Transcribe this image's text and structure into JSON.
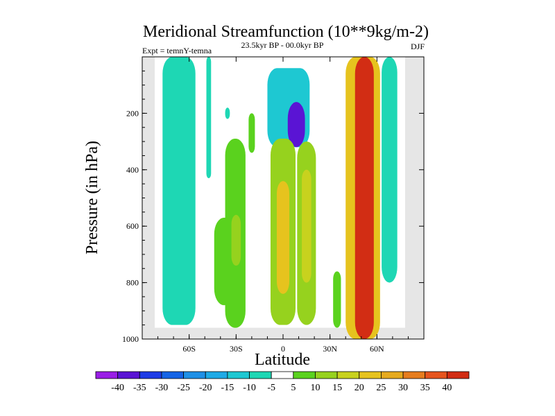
{
  "chart_data": {
    "type": "heatmap",
    "title": "Meridional Streamfunction (10**9kg/m-2)",
    "subtitle_left": "Expt = temnY-temna",
    "subtitle_center": "23.5kyr BP - 00.0kyr BP",
    "subtitle_right": "DJF",
    "xlabel": "Latitude",
    "ylabel": "Pressure (in hPa)",
    "xlim": [
      -90,
      90
    ],
    "ylim": [
      1000,
      0
    ],
    "x_ticks": [
      {
        "value": -60,
        "label": "60S"
      },
      {
        "value": -30,
        "label": "30S"
      },
      {
        "value": 0,
        "label": "0"
      },
      {
        "value": 30,
        "label": "30N"
      },
      {
        "value": 60,
        "label": "60N"
      }
    ],
    "y_ticks": [
      {
        "value": 200,
        "label": "200"
      },
      {
        "value": 400,
        "label": "400"
      },
      {
        "value": 600,
        "label": "600"
      },
      {
        "value": 800,
        "label": "800"
      },
      {
        "value": 1000,
        "label": "1000"
      }
    ],
    "missing_color": "#e6e6e6",
    "zero_band_color": "#ffffff",
    "color_levels": [
      -40,
      -35,
      -30,
      -25,
      -20,
      -15,
      -10,
      -5,
      5,
      10,
      15,
      20,
      25,
      30,
      35,
      40
    ],
    "colorbar_labels": [
      "-40",
      "-35",
      "-30",
      "-25",
      "-20",
      "-15",
      "-10",
      "-5",
      "5",
      "10",
      "15",
      "20",
      "25",
      "30",
      "35",
      "40"
    ],
    "colorbar_colors": [
      "#9a1ee6",
      "#5a14d4",
      "#1e3ce6",
      "#1464e6",
      "#1e90e6",
      "#1eaae6",
      "#1ec8d2",
      "#1ed7b4",
      "#ffffff",
      "#5ad21e",
      "#96d21e",
      "#c8d21e",
      "#e6c31e",
      "#e6aa1e",
      "#e67d1e",
      "#e6551e",
      "#d22d14"
    ],
    "features": [
      {
        "name": "sh-polar-cell",
        "value": -7,
        "lat": [
          -77,
          -56
        ],
        "p": [
          0,
          950
        ]
      },
      {
        "name": "sh-midlat-strip",
        "value": -6,
        "lat": [
          -49,
          -46
        ],
        "p": [
          0,
          430
        ]
      },
      {
        "name": "sh-midlat-dot",
        "value": -7,
        "lat": [
          -37,
          -34
        ],
        "p": [
          180,
          220
        ]
      },
      {
        "name": "sh-midlat-cell",
        "value": 8,
        "lat": [
          -44,
          -29
        ],
        "p": [
          570,
          880
        ]
      },
      {
        "name": "sh-ferrel-cell",
        "value": 8,
        "lat": [
          -37,
          -24
        ],
        "p": [
          290,
          960
        ]
      },
      {
        "name": "sh-ferrel-core",
        "value": 11,
        "lat": [
          -33,
          -27
        ],
        "p": [
          560,
          740
        ]
      },
      {
        "name": "sh-upper-green",
        "value": 8,
        "lat": [
          -22,
          -18
        ],
        "p": [
          200,
          340
        ]
      },
      {
        "name": "tropical-upper-neg",
        "value": -15,
        "lat": [
          -10,
          17
        ],
        "p": [
          40,
          320
        ]
      },
      {
        "name": "tropical-upper-core",
        "value": -38,
        "lat": [
          3,
          14
        ],
        "p": [
          160,
          320
        ]
      },
      {
        "name": "hadley-sh",
        "value": 14,
        "lat": [
          -8,
          8
        ],
        "p": [
          290,
          950
        ]
      },
      {
        "name": "hadley-sh-core",
        "value": 24,
        "lat": [
          -4,
          4
        ],
        "p": [
          440,
          840
        ]
      },
      {
        "name": "hadley-nh",
        "value": 12,
        "lat": [
          9,
          21
        ],
        "p": [
          300,
          950
        ]
      },
      {
        "name": "hadley-nh-core",
        "value": 19,
        "lat": [
          12,
          18
        ],
        "p": [
          400,
          800
        ]
      },
      {
        "name": "nh-small-green",
        "value": 8,
        "lat": [
          32,
          37
        ],
        "p": [
          760,
          960
        ]
      },
      {
        "name": "nh-deep-cell",
        "value": 22,
        "lat": [
          40,
          62
        ],
        "p": [
          0,
          1000
        ]
      },
      {
        "name": "nh-deep-core",
        "value": 40,
        "lat": [
          46,
          58
        ],
        "p": [
          0,
          1000
        ]
      },
      {
        "name": "nh-polar-strip",
        "value": -6,
        "lat": [
          63,
          73
        ],
        "p": [
          0,
          800
        ]
      }
    ]
  }
}
